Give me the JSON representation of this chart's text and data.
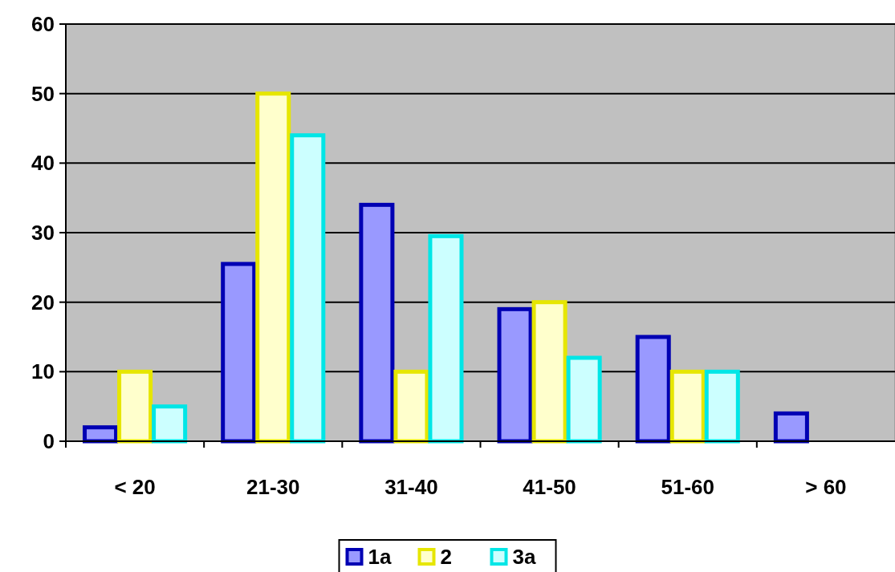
{
  "chart_data": {
    "type": "bar",
    "categories": [
      "< 20",
      "21-30",
      "31-40",
      "41-50",
      "51-60",
      "> 60"
    ],
    "series": [
      {
        "name": "1a",
        "color": "#9999ff",
        "values": [
          2,
          25.5,
          34,
          19,
          15,
          4
        ]
      },
      {
        "name": "2",
        "color": "#ffffcc",
        "values": [
          10,
          50,
          10,
          20,
          10,
          null
        ]
      },
      {
        "name": "3a",
        "color": "#ccffff",
        "values": [
          5,
          44,
          29.5,
          12,
          10,
          null
        ]
      }
    ],
    "ylim": [
      0,
      60
    ],
    "yticks": [
      0,
      10,
      20,
      30,
      40,
      50,
      60
    ],
    "grid": "y",
    "legend": "bottom"
  }
}
